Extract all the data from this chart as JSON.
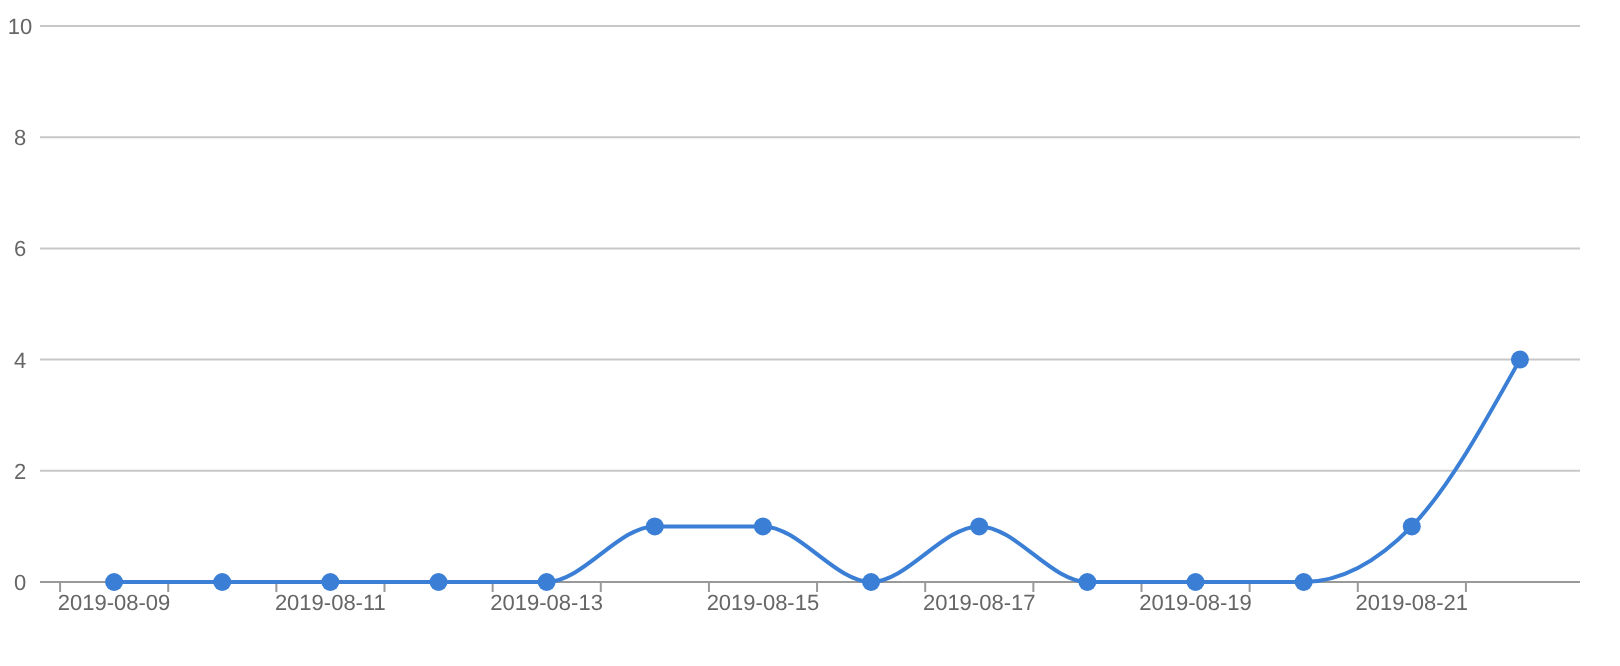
{
  "chart_data": {
    "type": "line",
    "categories": [
      "2019-08-09",
      null,
      "2019-08-11",
      null,
      "2019-08-13",
      null,
      "2019-08-15",
      null,
      "2019-08-17",
      null,
      "2019-08-19",
      null,
      "2019-08-21",
      null
    ],
    "series": [
      {
        "color": "#3a7fd5",
        "values": [
          0,
          0,
          0,
          0,
          0,
          1,
          1,
          0,
          1,
          0,
          0,
          0,
          1,
          4
        ]
      }
    ],
    "ylim": [
      0,
      10
    ],
    "yticks": [
      0,
      2,
      4,
      6,
      8,
      10
    ],
    "grid": "y",
    "marker": "circle",
    "line_style": "solid"
  }
}
